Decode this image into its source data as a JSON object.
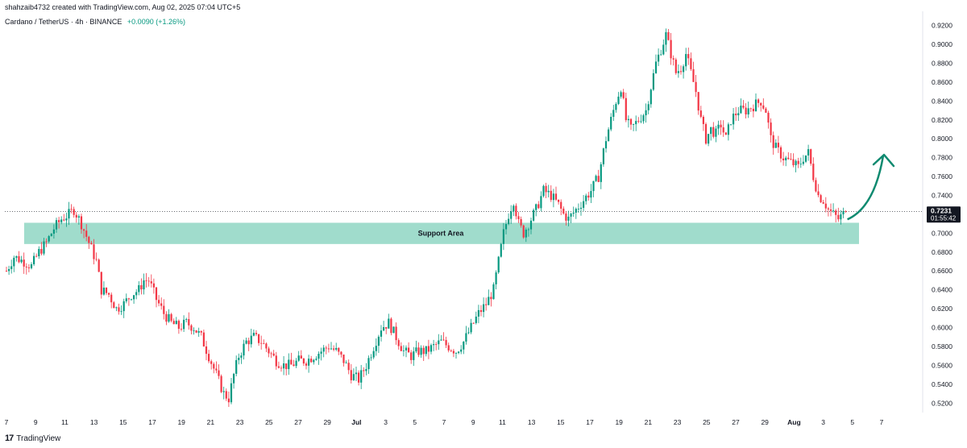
{
  "header": {
    "attribution": "shahzaib4732 created with TradingView.com, Aug 02, 2025 07:04 UTC+5",
    "symbol": "Cardano / TetherUS · 4h · BINANCE",
    "change": "+0.0090 (+1.26%)"
  },
  "price_label": {
    "price": "0.7231",
    "countdown": "01:55:42"
  },
  "support_label": "Support Area",
  "footer": {
    "logo_text": "TradingView",
    "logo_mark": "17"
  },
  "colors": {
    "up": "#089981",
    "down": "#f23645",
    "support": "#8fd6c3",
    "arrow": "#0f8a70"
  },
  "chart_data": {
    "type": "candlestick",
    "ylim": [
      0.51,
      0.935
    ],
    "y_ticks": [
      0.52,
      0.54,
      0.56,
      0.58,
      0.6,
      0.62,
      0.64,
      0.66,
      0.68,
      0.7,
      0.72,
      0.74,
      0.76,
      0.78,
      0.8,
      0.82,
      0.84,
      0.86,
      0.88,
      0.9,
      0.92
    ],
    "y_tick_labels": [
      "0.5200",
      "0.5400",
      "0.5600",
      "0.5800",
      "0.6000",
      "0.6200",
      "0.6400",
      "0.6600",
      "0.6800",
      "0.7000",
      "0.7200",
      "0.7400",
      "0.7600",
      "0.7800",
      "0.8000",
      "0.8200",
      "0.8400",
      "0.8600",
      "0.8800",
      "0.9000",
      "0.9200"
    ],
    "x_tick_labels": [
      "7",
      "9",
      "11",
      "13",
      "15",
      "17",
      "19",
      "21",
      "23",
      "25",
      "27",
      "29",
      "Jul",
      "3",
      "5",
      "7",
      "9",
      "11",
      "13",
      "15",
      "17",
      "19",
      "21",
      "23",
      "25",
      "27",
      "29",
      "Aug",
      "3",
      "5",
      "7"
    ],
    "x_bold": [
      "Jul",
      "Aug"
    ],
    "last_price": 0.7231,
    "support_zone": [
      0.6885,
      0.711
    ],
    "path_points": [
      [
        0,
        0.66
      ],
      [
        3,
        0.675
      ],
      [
        7,
        0.67
      ],
      [
        10,
        0.665
      ],
      [
        13,
        0.68
      ],
      [
        16,
        0.69
      ],
      [
        19,
        0.705
      ],
      [
        22,
        0.715
      ],
      [
        25,
        0.72
      ],
      [
        27,
        0.725
      ],
      [
        30,
        0.71
      ],
      [
        33,
        0.69
      ],
      [
        36,
        0.67
      ],
      [
        38,
        0.64
      ],
      [
        41,
        0.635
      ],
      [
        44,
        0.62
      ],
      [
        47,
        0.625
      ],
      [
        50,
        0.635
      ],
      [
        53,
        0.64
      ],
      [
        55,
        0.65
      ],
      [
        57,
        0.65
      ],
      [
        60,
        0.63
      ],
      [
        63,
        0.615
      ],
      [
        66,
        0.605
      ],
      [
        69,
        0.6
      ],
      [
        72,
        0.605
      ],
      [
        75,
        0.6
      ],
      [
        78,
        0.59
      ],
      [
        81,
        0.57
      ],
      [
        84,
        0.55
      ],
      [
        87,
        0.53
      ],
      [
        89,
        0.525
      ],
      [
        91,
        0.55
      ],
      [
        93,
        0.57
      ],
      [
        96,
        0.585
      ],
      [
        99,
        0.59
      ],
      [
        102,
        0.585
      ],
      [
        105,
        0.575
      ],
      [
        108,
        0.565
      ],
      [
        111,
        0.56
      ],
      [
        114,
        0.56
      ],
      [
        117,
        0.565
      ],
      [
        120,
        0.565
      ],
      [
        123,
        0.57
      ],
      [
        126,
        0.575
      ],
      [
        129,
        0.58
      ],
      [
        132,
        0.575
      ],
      [
        135,
        0.565
      ],
      [
        138,
        0.55
      ],
      [
        141,
        0.545
      ],
      [
        144,
        0.56
      ],
      [
        147,
        0.58
      ],
      [
        150,
        0.6
      ],
      [
        153,
        0.605
      ],
      [
        156,
        0.59
      ],
      [
        159,
        0.575
      ],
      [
        162,
        0.57
      ],
      [
        165,
        0.575
      ],
      [
        168,
        0.575
      ],
      [
        171,
        0.58
      ],
      [
        174,
        0.585
      ],
      [
        177,
        0.58
      ],
      [
        180,
        0.575
      ],
      [
        183,
        0.585
      ],
      [
        186,
        0.6
      ],
      [
        189,
        0.615
      ],
      [
        192,
        0.625
      ],
      [
        195,
        0.64
      ],
      [
        197,
        0.67
      ],
      [
        199,
        0.7
      ],
      [
        201,
        0.72
      ],
      [
        203,
        0.735
      ],
      [
        205,
        0.71
      ],
      [
        207,
        0.7
      ],
      [
        209,
        0.71
      ],
      [
        212,
        0.725
      ],
      [
        215,
        0.745
      ],
      [
        218,
        0.74
      ],
      [
        221,
        0.73
      ],
      [
        223,
        0.72
      ],
      [
        225,
        0.715
      ],
      [
        228,
        0.725
      ],
      [
        231,
        0.735
      ],
      [
        234,
        0.745
      ],
      [
        237,
        0.76
      ],
      [
        240,
        0.8
      ],
      [
        242,
        0.82
      ],
      [
        244,
        0.84
      ],
      [
        246,
        0.855
      ],
      [
        248,
        0.82
      ],
      [
        250,
        0.81
      ],
      [
        253,
        0.82
      ],
      [
        256,
        0.83
      ],
      [
        258,
        0.855
      ],
      [
        260,
        0.88
      ],
      [
        262,
        0.895
      ],
      [
        264,
        0.91
      ],
      [
        266,
        0.89
      ],
      [
        268,
        0.87
      ],
      [
        270,
        0.875
      ],
      [
        272,
        0.89
      ],
      [
        274,
        0.87
      ],
      [
        276,
        0.85
      ],
      [
        278,
        0.82
      ],
      [
        280,
        0.8
      ],
      [
        282,
        0.81
      ],
      [
        284,
        0.805
      ],
      [
        286,
        0.815
      ],
      [
        288,
        0.8
      ],
      [
        290,
        0.82
      ],
      [
        293,
        0.83
      ],
      [
        296,
        0.83
      ],
      [
        299,
        0.835
      ],
      [
        302,
        0.84
      ],
      [
        304,
        0.83
      ],
      [
        306,
        0.8
      ],
      [
        308,
        0.79
      ],
      [
        311,
        0.78
      ],
      [
        314,
        0.775
      ],
      [
        317,
        0.77
      ],
      [
        319,
        0.78
      ],
      [
        321,
        0.785
      ],
      [
        323,
        0.76
      ],
      [
        325,
        0.74
      ],
      [
        327,
        0.735
      ],
      [
        329,
        0.725
      ],
      [
        331,
        0.72
      ],
      [
        333,
        0.715
      ],
      [
        335,
        0.72
      ],
      [
        336,
        0.7231
      ]
    ]
  }
}
